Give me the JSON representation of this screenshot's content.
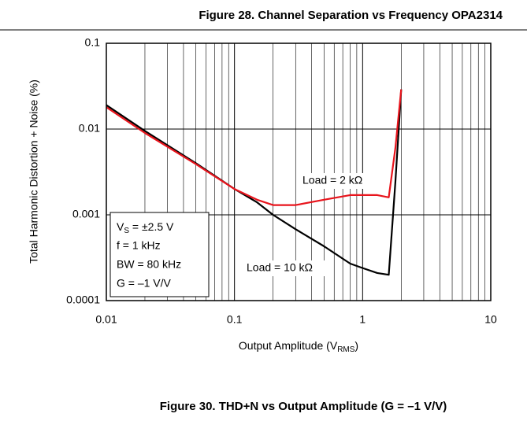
{
  "chart_data": {
    "type": "line",
    "page_title": "Figure 28. Channel Separation vs Frequency OPA2314",
    "caption": "Figure 30. THD+N vs Output Amplitude (G = –1 V/V)",
    "xlabel": [
      "Output Amplitude (V",
      "RMS",
      ")"
    ],
    "ylabel": "Total Harmonic Distortion + Noise (%)",
    "annotation": [
      [
        "V",
        "S",
        " = ±2.5 V"
      ],
      "f = 1 kHz",
      "BW = 80 kHz",
      "G = –1 V/V"
    ],
    "xscale": "log",
    "yscale": "log",
    "grid": true,
    "x": [
      0.01,
      0.02,
      0.05,
      0.1,
      0.15,
      0.2,
      0.3,
      0.5,
      0.8,
      1,
      1.3,
      1.6,
      1.8,
      2
    ],
    "series": [
      {
        "name": "Load = 10 kΩ",
        "color": "#000000",
        "values": [
          0.019,
          0.0095,
          0.004,
          0.002,
          0.0014,
          0.001,
          0.00068,
          0.00043,
          0.00027,
          0.00024,
          0.00021,
          0.0002,
          0.0024,
          0.029
        ]
      },
      {
        "name": "Load = 2 kΩ",
        "color": "#e8141c",
        "values": [
          0.018,
          0.009,
          0.0039,
          0.002,
          0.0015,
          0.0013,
          0.0013,
          0.0015,
          0.0017,
          0.0017,
          0.0017,
          0.0016,
          0.006,
          0.029
        ]
      }
    ],
    "xlim": [
      0.01,
      10
    ],
    "ylim": [
      0.0001,
      0.1
    ],
    "xticks": [
      0.01,
      0.1,
      1,
      10
    ],
    "yticks": [
      0.0001,
      0.001,
      0.01,
      0.1
    ],
    "xminorticks": [
      0.02,
      0.03,
      0.04,
      0.05,
      0.06,
      0.07,
      0.08,
      0.09,
      0.2,
      0.3,
      0.4,
      0.5,
      0.6,
      0.7,
      0.8,
      0.9,
      2,
      3,
      4,
      5,
      6,
      7,
      8,
      9
    ]
  }
}
